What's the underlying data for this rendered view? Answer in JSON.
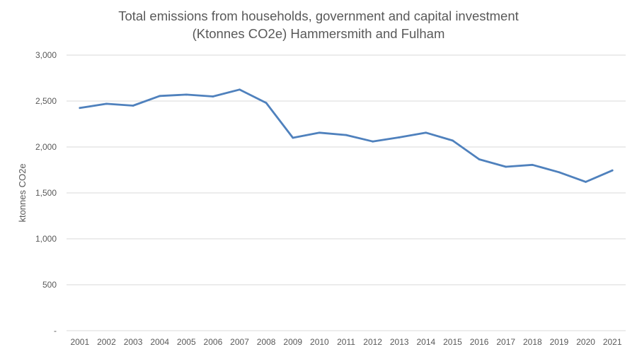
{
  "chart_data": {
    "type": "line",
    "title": "Total emissions from households, government and capital investment (Ktonnes CO2e) Hammersmith and Fulham",
    "title_lines": [
      "Total emissions from households, government and capital investment",
      "(Ktonnes CO2e) Hammersmith and Fulham"
    ],
    "xlabel": "",
    "ylabel": "ktonnes CO2e",
    "ylim": [
      0,
      3000
    ],
    "yticks": [
      0,
      500,
      1000,
      1500,
      2000,
      2500,
      3000
    ],
    "ytick_labels": [
      "-",
      "500",
      "1,000",
      "1,500",
      "2,000",
      "2,500",
      "3,000"
    ],
    "grid": true,
    "legend": "none",
    "categories": [
      "2001",
      "2002",
      "2003",
      "2004",
      "2005",
      "2006",
      "2007",
      "2008",
      "2009",
      "2010",
      "2011",
      "2012",
      "2013",
      "2014",
      "2015",
      "2016",
      "2017",
      "2018",
      "2019",
      "2020",
      "2021"
    ],
    "series": [
      {
        "values": [
          2425,
          2470,
          2450,
          2555,
          2570,
          2550,
          2625,
          2480,
          2100,
          2155,
          2130,
          2060,
          2105,
          2155,
          2070,
          1865,
          1785,
          1805,
          1725,
          1620,
          1745
        ],
        "color": "#4f81bd"
      }
    ],
    "colors": {
      "line": "#4f81bd",
      "grid": "#d9d9d9",
      "text": "#595959"
    }
  }
}
